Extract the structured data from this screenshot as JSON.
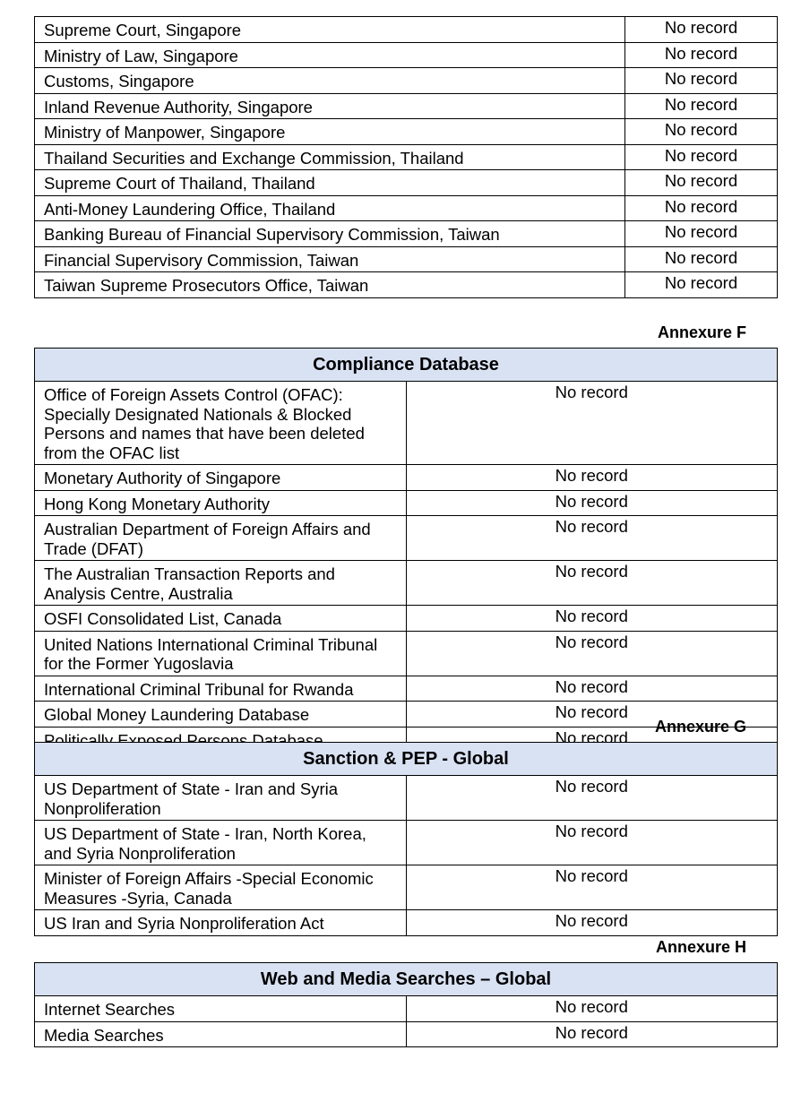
{
  "colors": {
    "header_bg": "#d9e2f3"
  },
  "tables": [
    {
      "annexure": "",
      "title": "",
      "rows": [
        {
          "name": "Supreme Court, Singapore",
          "result": "No record"
        },
        {
          "name": "Ministry of Law, Singapore",
          "result": "No record"
        },
        {
          "name": "Customs, Singapore",
          "result": "No record"
        },
        {
          "name": "Inland Revenue Authority, Singapore",
          "result": "No record"
        },
        {
          "name": "Ministry of Manpower, Singapore",
          "result": "No record"
        },
        {
          "name": "Thailand Securities and Exchange Commission, Thailand",
          "result": "No record"
        },
        {
          "name": "Supreme Court of Thailand, Thailand",
          "result": "No record"
        },
        {
          "name": "Anti-Money Laundering Office, Thailand",
          "result": "No record"
        },
        {
          "name": "Banking Bureau of Financial Supervisory Commission, Taiwan",
          "result": "No record"
        },
        {
          "name": "Financial Supervisory Commission, Taiwan",
          "result": "No record"
        },
        {
          "name": "Taiwan Supreme Prosecutors Office, Taiwan",
          "result": "No record"
        }
      ]
    },
    {
      "annexure": "Annexure F",
      "title": "Compliance Database",
      "rows": [
        {
          "name": "Office of Foreign Assets Control (OFAC): Specially Designated Nationals & Blocked Persons and names that have been deleted from the OFAC list",
          "result": "No record"
        },
        {
          "name": "Monetary Authority of Singapore",
          "result": "No record"
        },
        {
          "name": "Hong Kong Monetary Authority",
          "result": "No record"
        },
        {
          "name": "Australian Department of Foreign Affairs and Trade (DFAT)",
          "result": "No record"
        },
        {
          "name": "The Australian Transaction Reports and Analysis Centre, Australia",
          "result": "No record"
        },
        {
          "name": "OSFI Consolidated List, Canada",
          "result": "No record"
        },
        {
          "name": "United Nations International Criminal Tribunal for the Former Yugoslavia",
          "result": "No record"
        },
        {
          "name": "International Criminal Tribunal for Rwanda",
          "result": "No record"
        },
        {
          "name": "Global Money Laundering Database",
          "result": "No record"
        },
        {
          "name": "Politically Exposed Persons Database",
          "result": "No record"
        }
      ]
    },
    {
      "annexure": "Annexure G",
      "title": "Sanction & PEP - Global",
      "rows": [
        {
          "name": "US Department of State - Iran and Syria Nonproliferation",
          "result": "No record"
        },
        {
          "name": "US Department of State - Iran, North Korea, and Syria Nonproliferation",
          "result": "No record"
        },
        {
          "name": "Minister of Foreign Affairs -Special Economic Measures -Syria, Canada",
          "result": "No record"
        },
        {
          "name": "US Iran and Syria Nonproliferation Act",
          "result": "No record"
        }
      ]
    },
    {
      "annexure": "Annexure H",
      "title": "Web and Media Searches – Global",
      "rows": [
        {
          "name": "Internet Searches",
          "result": "No record"
        },
        {
          "name": "Media Searches",
          "result": "No record"
        }
      ]
    }
  ]
}
